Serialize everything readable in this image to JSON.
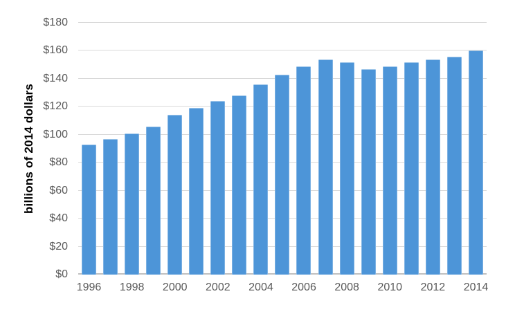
{
  "chart_data": {
    "type": "bar",
    "title": "",
    "xlabel": "",
    "ylabel": "billions of 2014 dollars",
    "categories": [
      "1996",
      "1997",
      "1998",
      "1999",
      "2000",
      "2001",
      "2002",
      "2003",
      "2004",
      "2005",
      "2006",
      "2007",
      "2008",
      "2009",
      "2010",
      "2011",
      "2012",
      "2013",
      "2014"
    ],
    "values": [
      93,
      97,
      101,
      106,
      114,
      119,
      124,
      128,
      136,
      143,
      149,
      154,
      152,
      147,
      149,
      152,
      154,
      156,
      160
    ],
    "ylim": [
      0,
      180
    ],
    "ytick_interval": 20,
    "ytick_labels": [
      "$0",
      "$20",
      "$40",
      "$60",
      "$80",
      "$100",
      "$120",
      "$140",
      "$160",
      "$180"
    ],
    "xtick_labels": [
      "1996",
      "1998",
      "2000",
      "2002",
      "2004",
      "2006",
      "2008",
      "2010",
      "2012",
      "2014"
    ],
    "grid": true,
    "legend": "none",
    "colors": {
      "bar": "#4D95D8",
      "gridline": "#D9D9D9",
      "axis_line": "#BFBFBF",
      "tick_text": "#595959",
      "ylabel_text": "#000000",
      "background": "#FFFFFF"
    }
  }
}
